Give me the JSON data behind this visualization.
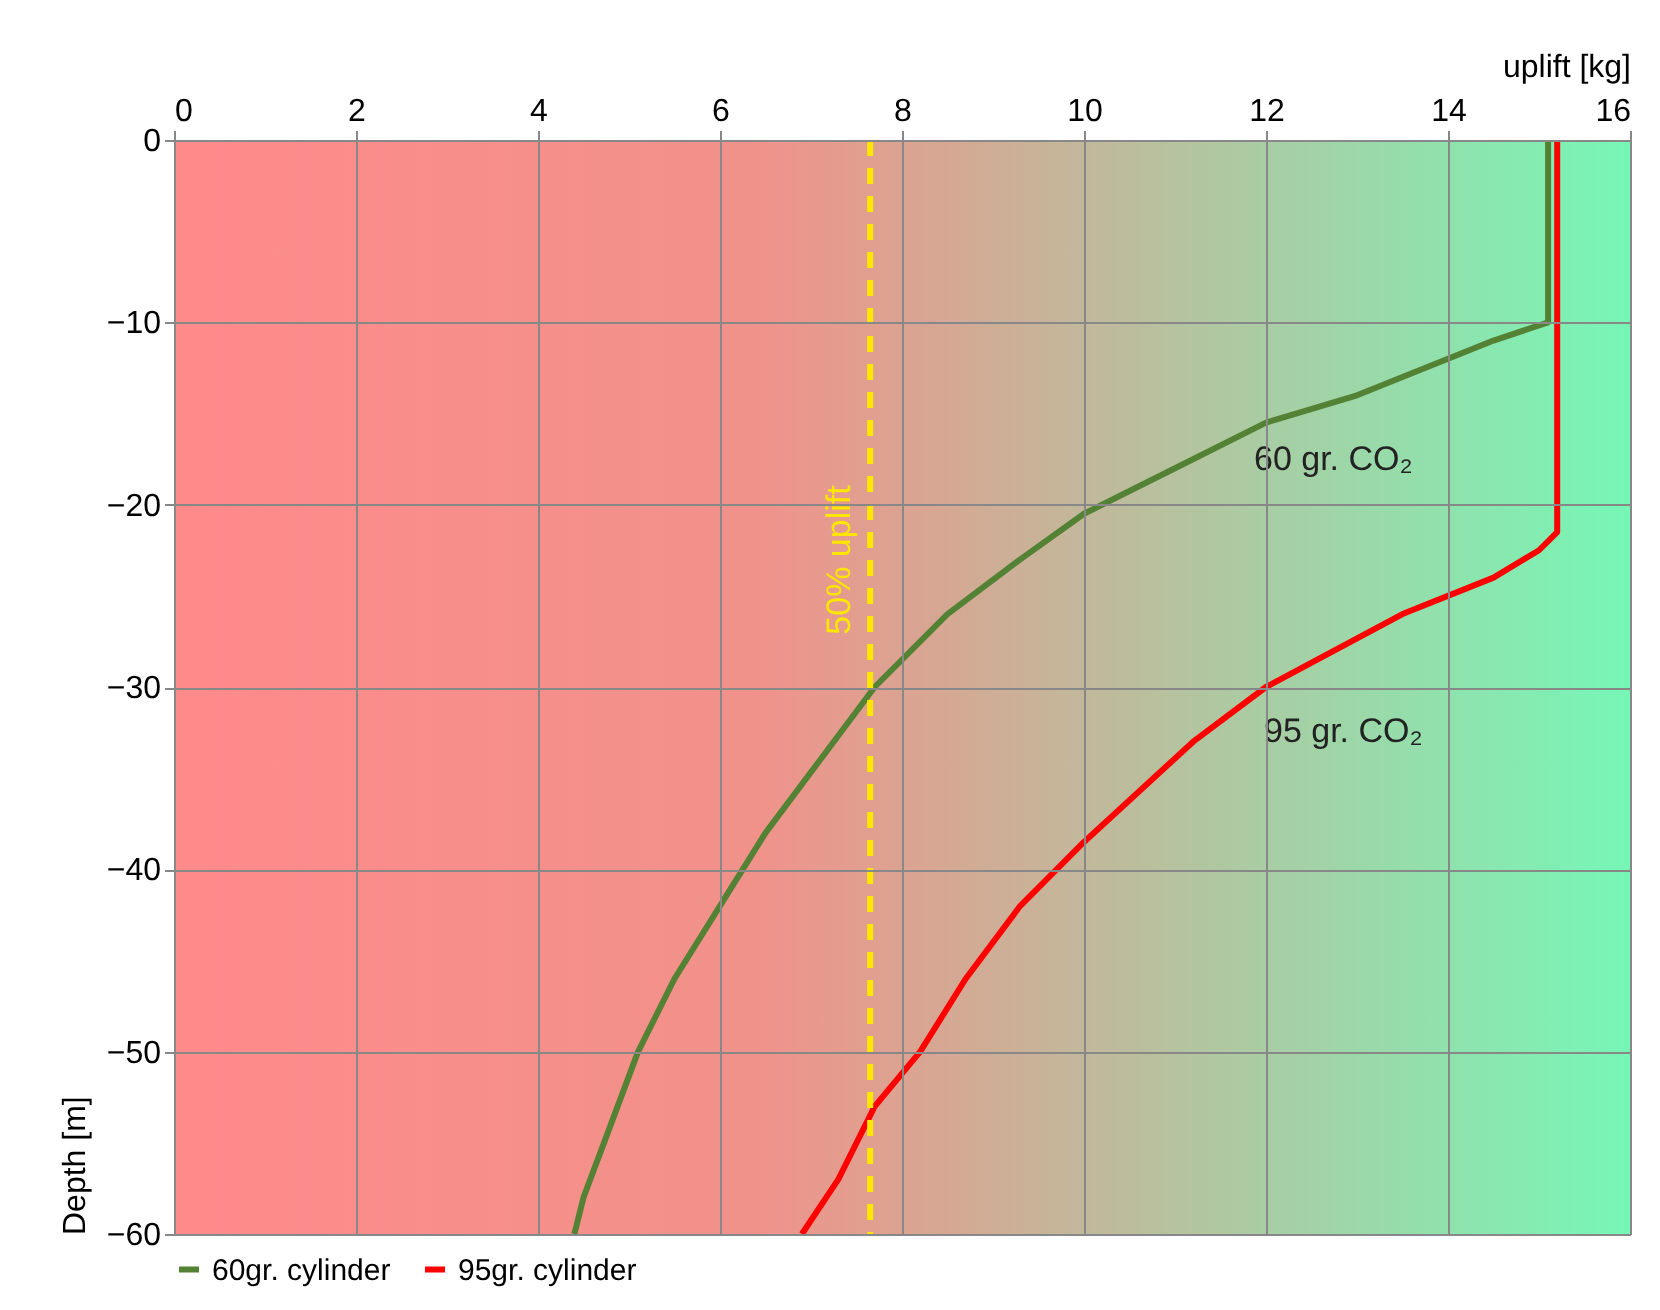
{
  "chart_data": {
    "type": "line",
    "xlabel": "uplift [kg]",
    "ylabel": "Depth [m]",
    "xlim": [
      0,
      16
    ],
    "xticks": [
      0,
      2,
      4,
      6,
      8,
      10,
      12,
      14,
      16
    ],
    "ylim": [
      -60,
      0
    ],
    "yticks": [
      -60,
      -50,
      -40,
      -30,
      -20,
      -10,
      0
    ],
    "grid": true,
    "legend": "bottom",
    "marker": "none",
    "line_style": "solid",
    "series": [
      {
        "name": "60gr. cylinder",
        "color": "#548235",
        "x": [
          15.1,
          15.1,
          14.5,
          14,
          13,
          12,
          11,
          10,
          9.3,
          8.5,
          7.7,
          7.1,
          6.5,
          6,
          5.5,
          5.1,
          4.8,
          4.5,
          4.4
        ],
        "values": [
          0,
          -10,
          -11,
          -12,
          -14,
          -15.5,
          -18,
          -20.5,
          -23,
          -26,
          -30,
          -34,
          -38,
          -42,
          -46,
          -50,
          -54,
          -58,
          -60
        ]
      },
      {
        "name": "95gr. cylinder",
        "color": "#ff0000",
        "x": [
          15.2,
          15.2,
          15,
          14.5,
          13.5,
          12,
          11.2,
          10,
          9.3,
          8.7,
          8.2,
          7.7,
          7.3,
          6.9
        ],
        "values": [
          0,
          -21.5,
          -22.5,
          -24,
          -26,
          -30,
          -33,
          -38.5,
          -42,
          -46,
          -50,
          -53,
          -57,
          -60
        ]
      }
    ],
    "ref_lines": [
      {
        "axis": "x",
        "value": 7.65,
        "label": "50% uplift",
        "color": "#ffe600",
        "line_style": "dashed"
      }
    ],
    "annotations": [
      "60 gr. CO₂",
      "95 gr. CO₂"
    ]
  }
}
